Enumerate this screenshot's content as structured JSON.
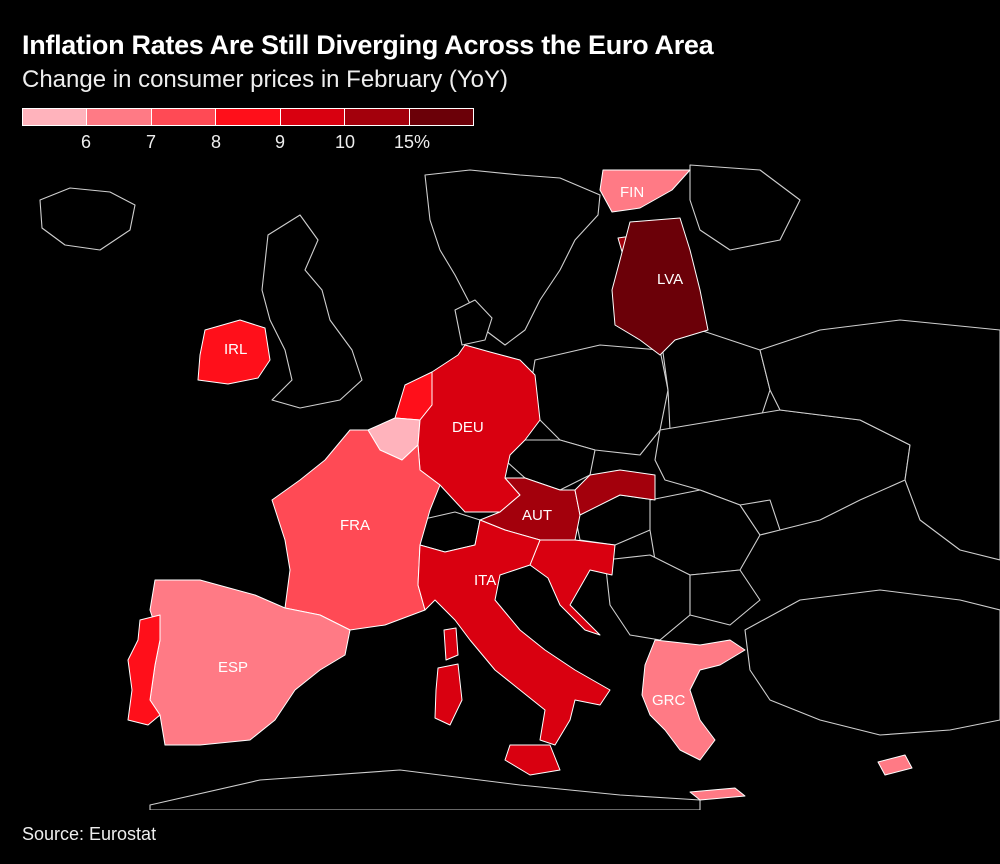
{
  "title": "Inflation Rates Are Still Diverging Across the Euro Area",
  "subtitle": "Change in consumer prices in February (YoY)",
  "legend": {
    "colors": [
      "#ffb3bc",
      "#ff7a85",
      "#ff4a55",
      "#ff0f1a",
      "#d90010",
      "#a3000c",
      "#6b0008"
    ],
    "ticks": [
      {
        "label": "6"
      },
      {
        "label": "7"
      },
      {
        "label": "8"
      },
      {
        "label": "9"
      },
      {
        "label": "10"
      },
      {
        "label": "15%"
      }
    ]
  },
  "countries": {
    "FIN": {
      "label": "FIN",
      "color": "#ff7a85"
    },
    "LVA": {
      "label": "LVA",
      "color": "#6b0008"
    },
    "IRL": {
      "label": "IRL",
      "color": "#ff0f1a"
    },
    "DEU": {
      "label": "DEU",
      "color": "#d90010"
    },
    "FRA": {
      "label": "FRA",
      "color": "#ff4a55"
    },
    "AUT": {
      "label": "AUT",
      "color": "#a3000c"
    },
    "ITA": {
      "label": "ITA",
      "color": "#d90010"
    },
    "ESP": {
      "label": "ESP",
      "color": "#ff7a85"
    },
    "GRC": {
      "label": "GRC",
      "color": "#ff7a85"
    }
  },
  "source": "Source: Eurostat"
}
